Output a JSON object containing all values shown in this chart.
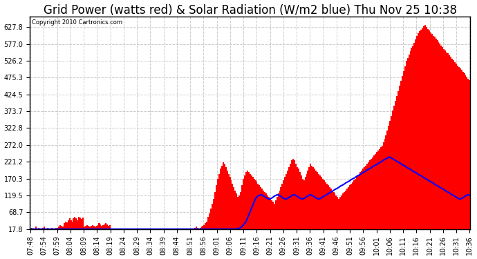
{
  "title": "Grid Power (watts red) & Solar Radiation (W/m2 blue) Thu Nov 25 10:38",
  "copyright": "Copyright 2010 Cartronics.com",
  "yticks": [
    17.8,
    68.7,
    119.5,
    170.3,
    221.2,
    272.0,
    322.8,
    373.7,
    424.5,
    475.3,
    526.2,
    577.0,
    627.8
  ],
  "ylim": [
    17.8,
    660
  ],
  "xtick_labels": [
    "07:48",
    "07:54",
    "07:59",
    "08:04",
    "08:09",
    "08:14",
    "08:19",
    "08:24",
    "08:29",
    "08:34",
    "08:39",
    "08:44",
    "08:51",
    "08:56",
    "09:01",
    "09:06",
    "09:11",
    "09:16",
    "09:21",
    "09:26",
    "09:31",
    "09:36",
    "09:41",
    "09:46",
    "09:51",
    "09:56",
    "10:01",
    "10:06",
    "10:11",
    "10:16",
    "10:21",
    "10:26",
    "10:31",
    "10:36"
  ],
  "background_color": "#ffffff",
  "grid_color": "#cccccc",
  "bar_color": "#ff0000",
  "line_color": "#0000ff",
  "title_fontsize": 12,
  "tick_fontsize": 7,
  "red_data": [
    18,
    22,
    18,
    20,
    25,
    18,
    22,
    20,
    18,
    22,
    25,
    20,
    18,
    22,
    20,
    18,
    22,
    20,
    18,
    22,
    22,
    25,
    30,
    28,
    25,
    35,
    40,
    38,
    45,
    50,
    45,
    40,
    50,
    55,
    50,
    45,
    55,
    52,
    48,
    52,
    25,
    28,
    30,
    28,
    25,
    28,
    30,
    28,
    25,
    28,
    30,
    35,
    32,
    28,
    30,
    32,
    35,
    32,
    28,
    30,
    18,
    20,
    18,
    20,
    18,
    20,
    18,
    20,
    18,
    20,
    18,
    20,
    18,
    20,
    18,
    20,
    18,
    20,
    18,
    20,
    18,
    20,
    18,
    20,
    18,
    20,
    18,
    20,
    18,
    20,
    18,
    20,
    18,
    20,
    18,
    20,
    18,
    20,
    18,
    20,
    18,
    20,
    18,
    20,
    18,
    20,
    18,
    20,
    18,
    20,
    18,
    20,
    18,
    20,
    18,
    20,
    18,
    20,
    18,
    20,
    18,
    20,
    22,
    25,
    22,
    20,
    22,
    25,
    28,
    30,
    35,
    40,
    55,
    65,
    80,
    95,
    110,
    130,
    150,
    170,
    185,
    200,
    210,
    220,
    215,
    205,
    195,
    185,
    175,
    165,
    155,
    145,
    135,
    125,
    115,
    120,
    130,
    150,
    170,
    180,
    190,
    195,
    190,
    185,
    180,
    175,
    170,
    165,
    160,
    155,
    150,
    145,
    140,
    135,
    130,
    125,
    120,
    115,
    110,
    105,
    100,
    95,
    105,
    115,
    125,
    135,
    145,
    155,
    165,
    175,
    185,
    195,
    205,
    215,
    225,
    230,
    225,
    215,
    205,
    200,
    190,
    180,
    170,
    165,
    175,
    185,
    195,
    205,
    215,
    210,
    205,
    200,
    195,
    190,
    185,
    180,
    175,
    170,
    165,
    160,
    155,
    150,
    145,
    140,
    135,
    130,
    125,
    120,
    115,
    110,
    115,
    120,
    125,
    130,
    135,
    140,
    145,
    150,
    155,
    160,
    165,
    170,
    175,
    180,
    185,
    190,
    195,
    200,
    205,
    210,
    215,
    220,
    225,
    230,
    235,
    240,
    245,
    250,
    255,
    260,
    265,
    270,
    280,
    290,
    300,
    315,
    330,
    345,
    360,
    375,
    390,
    405,
    420,
    435,
    450,
    465,
    480,
    495,
    510,
    525,
    535,
    545,
    555,
    565,
    570,
    580,
    590,
    600,
    610,
    615,
    620,
    625,
    630,
    635,
    628,
    622,
    618,
    612,
    608,
    602,
    598,
    592,
    588,
    582,
    578,
    572,
    568,
    562,
    558,
    552,
    548,
    542,
    538,
    532,
    528,
    522,
    518,
    512,
    508,
    502,
    498,
    492,
    488,
    482,
    478,
    472,
    468
  ],
  "blue_data": [
    18,
    18,
    18,
    18,
    18,
    18,
    18,
    18,
    18,
    18,
    18,
    18,
    18,
    18,
    18,
    18,
    18,
    18,
    18,
    18,
    18,
    18,
    18,
    18,
    18,
    18,
    18,
    18,
    18,
    18,
    18,
    18,
    18,
    18,
    18,
    18,
    18,
    18,
    18,
    18,
    18,
    18,
    18,
    18,
    18,
    18,
    18,
    18,
    18,
    18,
    18,
    18,
    18,
    18,
    18,
    18,
    18,
    18,
    18,
    18,
    18,
    18,
    18,
    18,
    18,
    18,
    18,
    18,
    18,
    18,
    18,
    18,
    18,
    18,
    18,
    18,
    18,
    18,
    18,
    18,
    18,
    18,
    18,
    18,
    18,
    18,
    18,
    18,
    18,
    18,
    18,
    18,
    18,
    18,
    18,
    18,
    18,
    18,
    18,
    18,
    18,
    18,
    18,
    18,
    18,
    18,
    18,
    18,
    18,
    18,
    18,
    18,
    18,
    18,
    18,
    18,
    18,
    18,
    18,
    18,
    18,
    18,
    18,
    18,
    18,
    18,
    18,
    18,
    18,
    18,
    18,
    18,
    18,
    18,
    18,
    18,
    18,
    18,
    18,
    18,
    18,
    18,
    18,
    18,
    18,
    18,
    18,
    18,
    18,
    18,
    18,
    19,
    20,
    22,
    25,
    30,
    35,
    40,
    50,
    60,
    70,
    80,
    90,
    100,
    110,
    115,
    118,
    120,
    122,
    120,
    118,
    115,
    112,
    110,
    108,
    110,
    112,
    115,
    118,
    120,
    122,
    120,
    118,
    115,
    112,
    110,
    108,
    110,
    112,
    115,
    118,
    120,
    122,
    120,
    118,
    115,
    112,
    110,
    108,
    110,
    112,
    115,
    118,
    120,
    122,
    120,
    118,
    115,
    112,
    110,
    108,
    110,
    112,
    115,
    118,
    120,
    122,
    125,
    128,
    130,
    132,
    135,
    138,
    140,
    142,
    145,
    148,
    150,
    152,
    155,
    158,
    160,
    162,
    165,
    168,
    170,
    172,
    175,
    178,
    180,
    182,
    185,
    188,
    190,
    192,
    195,
    198,
    200,
    202,
    205,
    208,
    210,
    212,
    215,
    218,
    220,
    222,
    225,
    228,
    230,
    232,
    235,
    235,
    232,
    230,
    228,
    225,
    222,
    220,
    218,
    215,
    212,
    210,
    208,
    205,
    202,
    200,
    198,
    195,
    192,
    190,
    188,
    185,
    182,
    180,
    178,
    175,
    172,
    170,
    168,
    165,
    162,
    160,
    158,
    155,
    152,
    150,
    148,
    145,
    142,
    140,
    138,
    135,
    132,
    130,
    128,
    125,
    122,
    120,
    118,
    115,
    112,
    110,
    108,
    110,
    112,
    115,
    118,
    120,
    122,
    120
  ]
}
